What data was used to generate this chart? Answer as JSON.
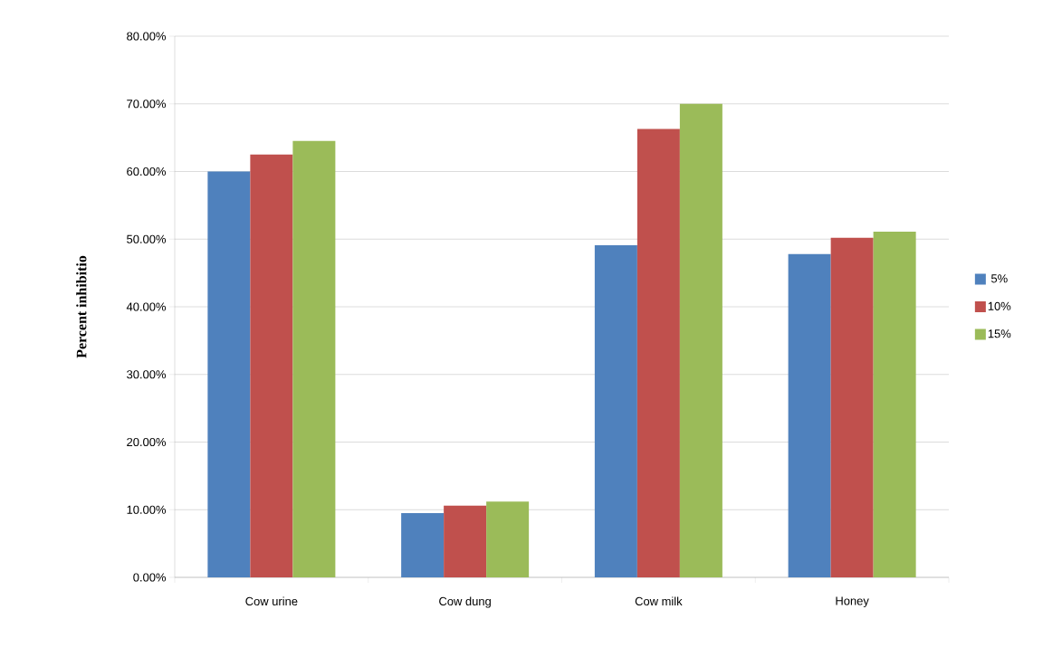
{
  "chart_data": {
    "type": "bar",
    "ylabel": "Percent inhibitio",
    "categories": [
      "Cow urine",
      "Cow dung",
      "Cow milk",
      "Honey"
    ],
    "series": [
      {
        "name": "5%",
        "color": "#4f81bd",
        "values": [
          60.0,
          9.5,
          49.1,
          47.8
        ]
      },
      {
        "name": "10%",
        "color": "#c0504d",
        "values": [
          62.5,
          10.6,
          66.3,
          50.2
        ]
      },
      {
        "name": "15%",
        "color": "#9bbb59",
        "values": [
          64.5,
          11.2,
          70.0,
          51.1
        ]
      }
    ],
    "ylim": [
      0,
      80
    ],
    "yticks": [
      {
        "value": 0,
        "label": "0.00%"
      },
      {
        "value": 10,
        "label": "10.00%"
      },
      {
        "value": 20,
        "label": "20.00%"
      },
      {
        "value": 30,
        "label": "30.00%"
      },
      {
        "value": 40,
        "label": "40.00%"
      },
      {
        "value": 50,
        "label": "50.00%"
      },
      {
        "value": 60,
        "label": "60.00%"
      },
      {
        "value": 70,
        "label": "70.00%"
      },
      {
        "value": 80,
        "label": "80.00%"
      }
    ],
    "grid": "y",
    "legend": "right"
  }
}
